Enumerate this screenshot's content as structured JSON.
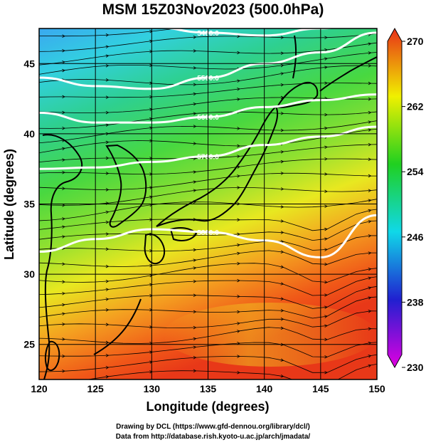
{
  "title": "MSM 15Z03Nov2023 (500.0hPa)",
  "x_axis": {
    "label": "Longitude (degrees)",
    "ticks": [
      "120",
      "125",
      "130",
      "135",
      "140",
      "145",
      "150"
    ],
    "range": [
      120,
      150
    ]
  },
  "y_axis": {
    "label": "Latitude  (degrees)",
    "ticks": [
      "25",
      "30",
      "35",
      "40",
      "45"
    ],
    "range": [
      22.5,
      47.5
    ]
  },
  "colorbar": {
    "ticks": [
      "230",
      "238",
      "246",
      "254",
      "262",
      "270"
    ],
    "range": [
      230,
      270
    ],
    "colors": [
      "#e000e0",
      "#2020d0",
      "#10d8e8",
      "#20d020",
      "#f0f000",
      "#e83018"
    ]
  },
  "contours": [
    {
      "label": "5400.0",
      "lats": [
        48.2,
        48.0,
        47.6,
        47.2,
        47.0,
        47.5,
        48.3
      ]
    },
    {
      "label": "5500.0",
      "lats": [
        44.0,
        43.4,
        43.2,
        44.0,
        45.0,
        45.8,
        47.2
      ]
    },
    {
      "label": "5600.0",
      "lats": [
        41.5,
        40.8,
        40.8,
        41.2,
        41.9,
        42.4,
        42.8
      ]
    },
    {
      "label": "5700.0",
      "lats": [
        37.5,
        37.6,
        38.0,
        38.4,
        39.2,
        39.8,
        40.5
      ]
    },
    {
      "label": "5800.0",
      "lats": [
        31.6,
        32.5,
        33.2,
        33.0,
        32.4,
        31.2,
        34.2
      ]
    }
  ],
  "footer": {
    "line1": "Drawing by DCL (https://www.gfd-dennou.org/library/dcl/)",
    "line2": "Data from http://database.rish.kyoto-u.ac.jp/arch/jmadata/"
  }
}
